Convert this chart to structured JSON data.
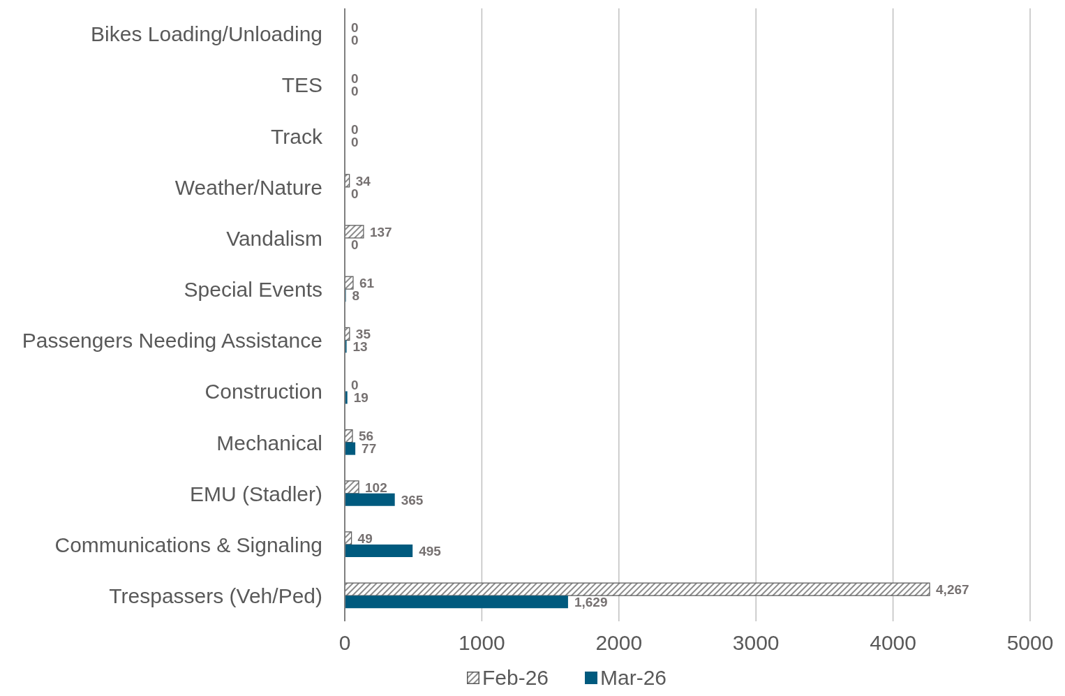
{
  "chart_data": {
    "type": "bar",
    "orientation": "horizontal",
    "categories": [
      "Bikes Loading/Unloading",
      "TES",
      "Track",
      "Weather/Nature",
      "Vandalism",
      "Special Events",
      "Passengers Needing Assistance",
      "Construction",
      "Mechanical",
      "EMU (Stadler)",
      "Communications & Signaling",
      "Trespassers (Veh/Ped)"
    ],
    "series": [
      {
        "name": "Feb-26",
        "color": "#595959",
        "values": [
          0,
          0,
          0,
          34,
          137,
          61,
          35,
          0,
          56,
          102,
          49,
          4267
        ],
        "value_labels": [
          "0",
          "0",
          "0",
          "34",
          "137",
          "61",
          "35",
          "0",
          "56",
          "102",
          "49",
          "4,267"
        ]
      },
      {
        "name": "Mar-26",
        "color": "#005a7e",
        "values": [
          0,
          0,
          0,
          0,
          0,
          8,
          13,
          19,
          77,
          365,
          495,
          1629
        ],
        "value_labels": [
          "0",
          "0",
          "0",
          "0",
          "0",
          "8",
          "13",
          "19",
          "77",
          "365",
          "495",
          "1,629"
        ]
      }
    ],
    "xlim": [
      0,
      5000
    ],
    "xticks": [
      0,
      1000,
      2000,
      3000,
      4000,
      5000
    ],
    "grid": "x",
    "legend": "bottom"
  }
}
